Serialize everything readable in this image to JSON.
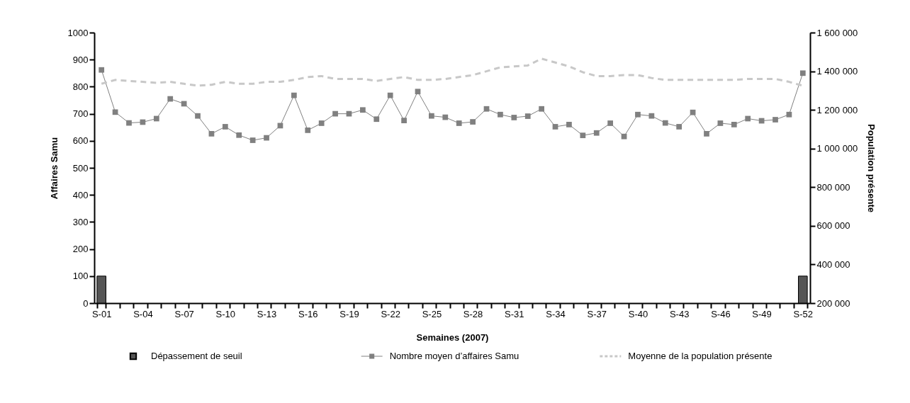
{
  "chart_data": {
    "type": "line",
    "xlabel": "Semaines (2007)",
    "ylabel": "Affaires Samu",
    "y2label": "Population présente",
    "categories": [
      "S-01",
      null,
      null,
      "S-04",
      null,
      null,
      "S-07",
      null,
      null,
      "S-10",
      null,
      null,
      "S-13",
      null,
      null,
      "S-16",
      null,
      null,
      "S-19",
      null,
      null,
      "S-22",
      null,
      null,
      "S-25",
      null,
      null,
      "S-28",
      null,
      null,
      "S-31",
      null,
      null,
      "S-34",
      null,
      null,
      "S-37",
      null,
      null,
      "S-40",
      null,
      null,
      "S-43",
      null,
      null,
      "S-46",
      null,
      null,
      "S-49",
      null,
      null,
      "S-52"
    ],
    "series": [
      {
        "name": "Dépassement de seuil",
        "type": "bar",
        "color": "#555555",
        "values": [
          100,
          null,
          null,
          null,
          null,
          null,
          null,
          null,
          null,
          null,
          null,
          null,
          null,
          null,
          null,
          null,
          null,
          null,
          null,
          null,
          null,
          null,
          null,
          null,
          null,
          null,
          null,
          null,
          null,
          null,
          null,
          null,
          null,
          null,
          null,
          null,
          null,
          null,
          null,
          null,
          null,
          null,
          null,
          null,
          null,
          null,
          null,
          null,
          null,
          null,
          null,
          100
        ]
      },
      {
        "name": "Nombre moyen d’affaires Samu",
        "color": "#808080",
        "marker": "square",
        "line_style": "solid",
        "values": [
          862,
          706,
          666,
          669,
          682,
          755,
          737,
          692,
          626,
          652,
          621,
          602,
          611,
          656,
          768,
          639,
          665,
          700,
          700,
          714,
          680,
          768,
          675,
          782,
          692,
          687,
          665,
          670,
          718,
          697,
          686,
          691,
          718,
          652,
          660,
          620,
          629,
          665,
          616,
          697,
          692,
          666,
          652,
          705,
          626,
          665,
          660,
          682,
          674,
          678,
          697,
          850
        ]
      },
      {
        "name": "Moyenne de la population présente",
        "axis": "y2",
        "color": "#c8c8c8",
        "marker": "none",
        "line_style": "dashed",
        "values": [
          1335000,
          1355000,
          1350000,
          1345000,
          1340000,
          1345000,
          1335000,
          1325000,
          1330000,
          1345000,
          1335000,
          1335000,
          1345000,
          1345000,
          1355000,
          1370000,
          1375000,
          1360000,
          1360000,
          1360000,
          1350000,
          1360000,
          1370000,
          1355000,
          1355000,
          1360000,
          1370000,
          1380000,
          1400000,
          1420000,
          1425000,
          1430000,
          1465000,
          1445000,
          1425000,
          1395000,
          1375000,
          1375000,
          1380000,
          1380000,
          1365000,
          1355000,
          1355000,
          1355000,
          1355000,
          1355000,
          1355000,
          1360000,
          1360000,
          1360000,
          1345000,
          1325000
        ]
      }
    ],
    "ylim": [
      0,
      1000
    ],
    "yticks": [
      0,
      100,
      200,
      300,
      400,
      500,
      600,
      700,
      800,
      900,
      1000
    ],
    "y2lim": [
      200000,
      1600000
    ],
    "y2ticks": [
      {
        "value": 200000,
        "label": "200 000"
      },
      {
        "value": 400000,
        "label": "400 000"
      },
      {
        "value": 600000,
        "label": "600 000"
      },
      {
        "value": 800000,
        "label": "800 000"
      },
      {
        "value": 1000000,
        "label": "1 000 000"
      },
      {
        "value": 1200000,
        "label": "1 200 000"
      },
      {
        "value": 1400000,
        "label": "1 400 000"
      },
      {
        "value": 1600000,
        "label": "1 600 000"
      }
    ],
    "grid": false,
    "legend": "bottom"
  }
}
